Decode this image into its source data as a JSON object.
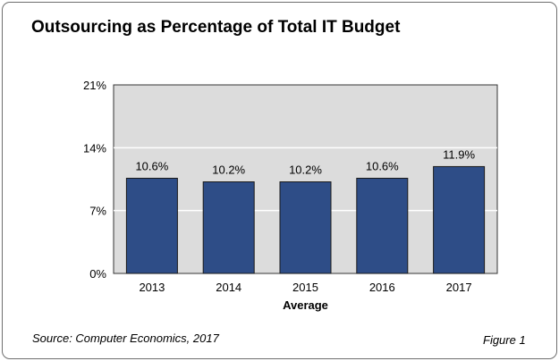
{
  "chart_data": {
    "type": "bar",
    "title": "Outsourcing as Percentage of Total IT Budget",
    "xlabel": "Average",
    "ylabel": "",
    "categories": [
      "2013",
      "2014",
      "2015",
      "2016",
      "2017"
    ],
    "values": [
      10.6,
      10.2,
      10.2,
      10.6,
      11.9
    ],
    "data_labels": [
      "10.6%",
      "10.2%",
      "10.2%",
      "10.6%",
      "11.9%"
    ],
    "ylim": [
      0,
      21
    ],
    "yticks": [
      0,
      7,
      14,
      21
    ],
    "ytick_labels": [
      "0%",
      "7%",
      "14%",
      "21%"
    ],
    "grid": true,
    "legend": "none",
    "bar_color": "#2e4d87",
    "plot_background": "#dcdcdc"
  },
  "footer": {
    "source": "Source: Computer Economics, 2017",
    "figure": "Figure 1"
  }
}
